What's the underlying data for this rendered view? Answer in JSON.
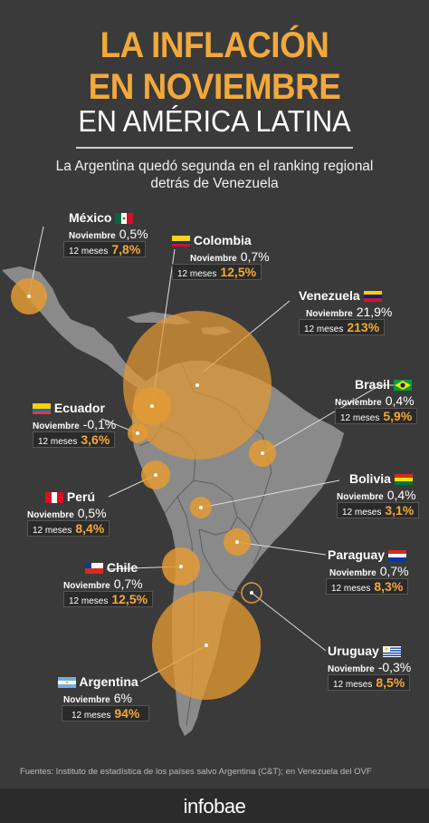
{
  "title": {
    "line1": "LA INFLACIÓN",
    "line2": "EN NOVIEMBRE",
    "line3": "EN AMÉRICA LATINA"
  },
  "subtitle": "La Argentina quedó segunda en el ranking regional detrás de Venezuela",
  "countries": {
    "mexico": {
      "name": "México",
      "nov_label": "Noviembre",
      "nov": "0,5%",
      "y12_label": "12 meses",
      "y12": "7,8%"
    },
    "colombia": {
      "name": "Colombia",
      "nov_label": "Noviembre",
      "nov": "0,7%",
      "y12_label": "12 meses",
      "y12": "12,5%"
    },
    "venezuela": {
      "name": "Venezuela",
      "nov_label": "Noviembre",
      "nov": "21,9%",
      "y12_label": "12 meses",
      "y12": "213%"
    },
    "ecuador": {
      "name": "Ecuador",
      "nov_label": "Noviembre",
      "nov": "-0,1%",
      "y12_label": "12 meses",
      "y12": "3,6%"
    },
    "brasil": {
      "name": "Brasil",
      "nov_label": "Noviembre",
      "nov": "0,4%",
      "y12_label": "12 meses",
      "y12": "5,9%"
    },
    "peru": {
      "name": "Perú",
      "nov_label": "Noviembre",
      "nov": "0,5%",
      "y12_label": "12 meses",
      "y12": "8,4%"
    },
    "bolivia": {
      "name": "Bolivia",
      "nov_label": "Noviembre",
      "nov": "0,4%",
      "y12_label": "12 meses",
      "y12": "3,1%"
    },
    "paraguay": {
      "name": "Paraguay",
      "nov_label": "Noviembre",
      "nov": "0,7%",
      "y12_label": "12 meses",
      "y12": "8,3%"
    },
    "chile": {
      "name": "Chile",
      "nov_label": "Noviembre",
      "nov": "0,7%",
      "y12_label": "12 meses",
      "y12": "12,5%"
    },
    "uruguay": {
      "name": "Uruguay",
      "nov_label": "Noviembre",
      "nov": "-0,3%",
      "y12_label": "12 meses",
      "y12": "8,5%"
    },
    "argentina": {
      "name": "Argentina",
      "nov_label": "Noviembre",
      "nov": "6%",
      "y12_label": "12 meses",
      "y12": "94%"
    }
  },
  "footer": "Fuentes: Instituto de estadística de los países salvo Argentina (C&T); en Venezuela del OVF",
  "brand": "infobae",
  "colors": {
    "accent": "#f2a93b",
    "bubble": "#e39a32",
    "background": "#3a3a3a",
    "land": "#8a8a8a"
  }
}
